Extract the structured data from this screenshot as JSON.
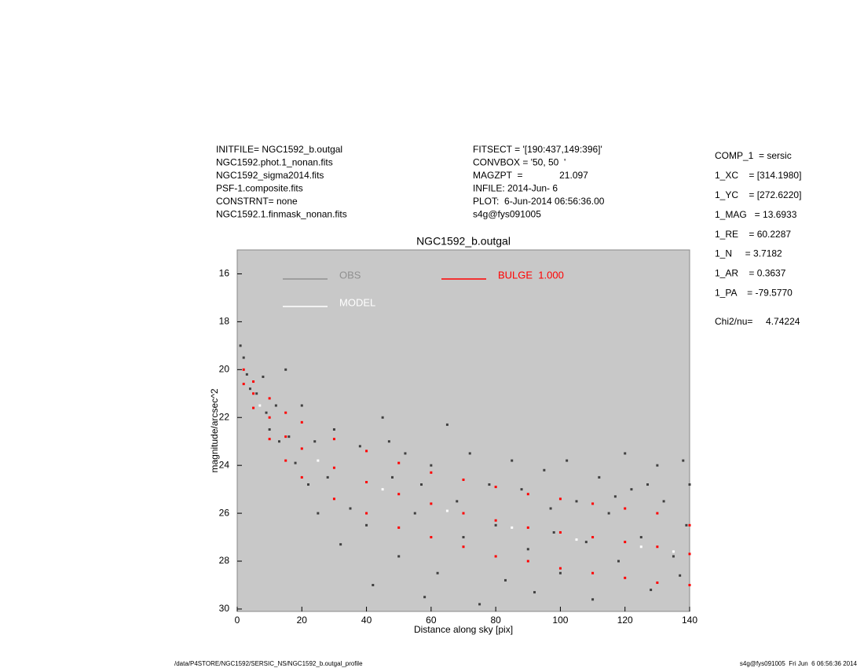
{
  "chart_data": {
    "type": "scatter",
    "title": "NGC1592_b.outgal",
    "x_label": "Distance along sky [pix]",
    "y_label": "magnitude/arcsec^2",
    "xlim": [
      0,
      140
    ],
    "ylim": [
      15,
      30.1
    ],
    "y_inverted": true,
    "xticks": [
      0,
      20,
      40,
      60,
      80,
      100,
      120,
      140
    ],
    "yticks": [
      16,
      18,
      20,
      22,
      24,
      26,
      28,
      30
    ],
    "background": "#c8c8c8",
    "header_left": [
      "INITFILE= NGC1592_b.outgal",
      "NGC1592.phot.1_nonan.fits",
      "NGC1592_sigma2014.fits",
      "PSF-1.composite.fits",
      "CONSTRNT= none",
      "NGC1592.1.finmask_nonan.fits"
    ],
    "header_middle": [
      "FITSECT = '[190:437,149:396]'",
      "CONVBOX = '50, 50  '",
      "MAGZPT  =              21.097",
      "INFILE: 2014-Jun- 6",
      "PLOT:  6-Jun-2014 06:56:36.00",
      "s4g@fys091005"
    ],
    "parameters": [
      "COMP_1  = sersic",
      "1_XC    = [314.1980]",
      "1_YC    = [272.6220]",
      "1_MAG   = 13.6933",
      "1_RE    = 60.2287",
      "1_N     = 3.7182",
      "1_AR    = 0.3637",
      "1_PA    = -79.5770"
    ],
    "chi2": "Chi2/nu=     4.74224",
    "footer_left": "/data/P4STORE/NGC1592/SERSIC_NS/NGC1592_b.outgal_profile",
    "footer_right": "s4g@fys091005  Fri Jun  6 06:56:36 2014",
    "series": [
      {
        "name": "OBS",
        "color": "#404040",
        "legend_color": "#909090",
        "x": [
          1,
          2,
          3,
          4,
          6,
          8,
          9,
          10,
          12,
          13,
          15,
          16,
          18,
          20,
          22,
          24,
          25,
          28,
          30,
          32,
          35,
          38,
          40,
          42,
          45,
          48,
          50,
          52,
          55,
          58,
          60,
          62,
          65,
          68,
          70,
          72,
          75,
          78,
          80,
          83,
          85,
          88,
          90,
          92,
          95,
          98,
          100,
          102,
          105,
          108,
          110,
          112,
          115,
          118,
          120,
          122,
          125,
          128,
          130,
          132,
          135,
          138,
          140,
          139,
          137,
          127,
          117,
          97,
          57,
          47
        ],
        "values": [
          19.0,
          19.5,
          20.2,
          20.8,
          21.0,
          20.3,
          21.8,
          22.5,
          21.5,
          23.0,
          20.0,
          22.8,
          23.9,
          21.5,
          24.8,
          23.0,
          26.0,
          24.5,
          22.5,
          27.3,
          25.8,
          23.2,
          26.5,
          29.0,
          22.0,
          24.5,
          27.8,
          23.5,
          26.0,
          29.5,
          24.0,
          28.5,
          22.3,
          25.5,
          27.0,
          23.5,
          29.8,
          24.8,
          26.5,
          28.8,
          23.8,
          25.0,
          27.5,
          29.3,
          24.2,
          26.8,
          28.5,
          23.8,
          25.5,
          27.2,
          29.6,
          24.5,
          26.0,
          28.0,
          23.5,
          25.0,
          27.0,
          29.2,
          24.0,
          25.5,
          27.8,
          23.8,
          24.8,
          26.5,
          28.6,
          24.8,
          25.3,
          25.8,
          24.8,
          23.0
        ]
      },
      {
        "name": "MODEL",
        "color": "#ffffff",
        "legend_color": "#ffffff",
        "x": [
          7,
          25,
          45,
          65,
          85,
          105,
          125,
          135
        ],
        "values": [
          21.5,
          23.8,
          25.0,
          25.9,
          26.6,
          27.1,
          27.4,
          27.6
        ]
      },
      {
        "name": "BULGE  1.000",
        "color": "#ff0000",
        "legend_color": "#ff0000",
        "x": [
          2,
          5,
          10,
          15,
          20,
          30,
          40,
          50,
          60,
          70,
          80,
          90,
          100,
          110,
          120,
          130,
          140,
          2,
          5,
          10,
          15,
          20,
          30,
          40,
          50,
          60,
          70,
          80,
          90,
          100,
          110,
          120,
          130,
          140,
          5,
          10,
          15,
          20,
          30,
          40,
          50,
          60,
          70,
          80,
          90,
          100,
          110,
          120,
          130,
          140
        ],
        "values": [
          20.0,
          20.5,
          21.2,
          21.8,
          22.2,
          22.9,
          23.4,
          23.9,
          24.3,
          24.6,
          24.9,
          25.2,
          25.4,
          25.6,
          25.8,
          26.0,
          26.5,
          20.6,
          21.6,
          22.9,
          23.8,
          24.5,
          25.4,
          26.0,
          26.6,
          27.0,
          27.4,
          27.8,
          28.0,
          28.3,
          28.5,
          28.7,
          28.9,
          29.0,
          21.0,
          22.0,
          22.8,
          23.3,
          24.1,
          24.7,
          25.2,
          25.6,
          26.0,
          26.3,
          26.6,
          26.8,
          27.0,
          27.2,
          27.4,
          27.7
        ]
      }
    ]
  }
}
